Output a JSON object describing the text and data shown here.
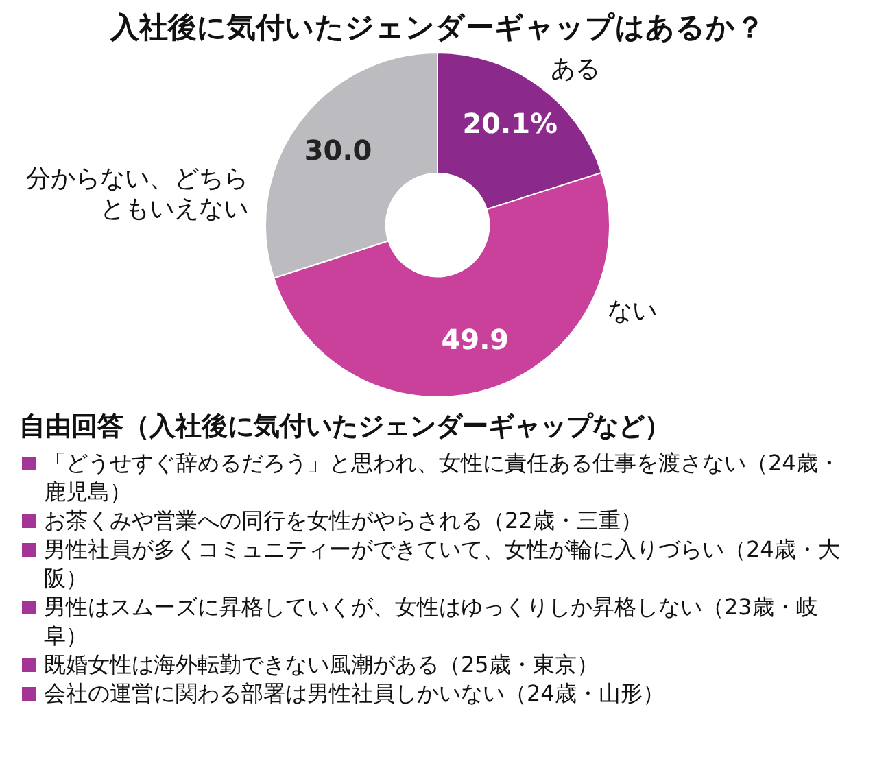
{
  "chart_data": {
    "type": "donut",
    "title": "入社後に気付いたジェンダーギャップはあるか？",
    "categories": [
      "ある",
      "ない",
      "分からない、どちらともいえない"
    ],
    "values": [
      20.1,
      49.9,
      30.0
    ],
    "value_labels": [
      "20.1%",
      "49.9",
      "30.0"
    ],
    "colors": [
      "#8c2a8c",
      "#c9419b",
      "#bcbcc0"
    ],
    "legend": false,
    "annotations": [
      "自由回答（入社後に気付いたジェンダーギャップなど）",
      "「どうせすぐ辞めるだろう」と思われ、女性に責任ある仕事を渡さない（24歳・鹿児島）",
      "お茶くみや営業への同行を女性がやらされる（22歳・三重）",
      "男性社員が多くコミュニティーができていて、女性が輪に入りづらい（24歳・大阪）",
      "男性はスムーズに昇格していくが、女性はゆっくりしか昇格しない（23歳・岐阜）",
      "既婚女性は海外転勤できない風潮がある（25歳・東京）",
      "会社の運営に関わる部署は男性社員しかいない（24歳・山形）"
    ]
  }
}
